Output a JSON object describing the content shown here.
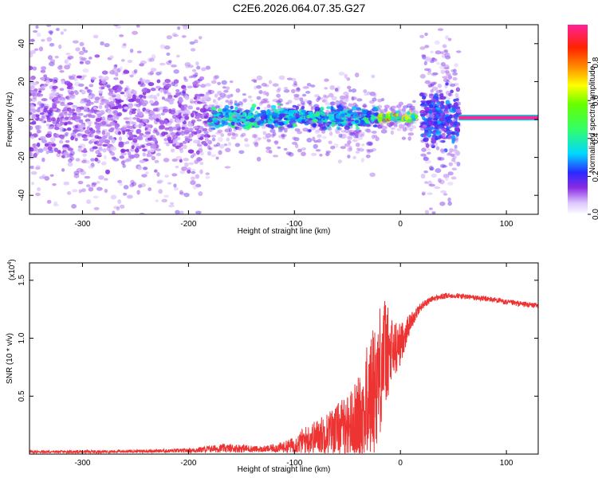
{
  "title": "C2E6.2026.064.07.35.G27",
  "charts": {
    "spectrogram": {
      "ylabel": "Frequency (Hz)",
      "xlabel": "Height of straight line (km)"
    },
    "snr": {
      "ylabel": "SNR (10 * v/v)",
      "exponent": "(x10",
      "exponent_power": "4",
      "exponent_close": ")",
      "xlabel": "Height of straight line (km)"
    },
    "colorbar": {
      "label": "Normalized spectral amplitude"
    }
  },
  "chart_data": [
    {
      "type": "heatmap",
      "title": "C2E6.2026.064.07.35.G27",
      "xlabel": "Height of straight line (km)",
      "ylabel": "Frequency (Hz)",
      "xlim": [
        -350,
        130
      ],
      "ylim": [
        -50,
        50
      ],
      "x_ticks": [
        -300,
        -200,
        -100,
        0,
        100
      ],
      "y_ticks": [
        -40,
        -20,
        0,
        20,
        40
      ],
      "colorbar": {
        "label": "Normalized spectral amplitude",
        "range": [
          0,
          1
        ],
        "ticks": [
          0.0,
          0.2,
          0.4,
          0.6,
          0.8
        ]
      },
      "features": [
        {
          "x_range": [
            -350,
            -180
          ],
          "freq_spread": 45,
          "peak_amplitude": 0.15
        },
        {
          "x_range": [
            -180,
            -20
          ],
          "freq_spread": 10,
          "peak_amplitude": 0.45
        },
        {
          "x_range": [
            -20,
            15
          ],
          "freq_spread": 4,
          "peak_amplitude": 0.8
        },
        {
          "x_range": [
            20,
            55
          ],
          "freq_spread": 25,
          "peak_amplitude": 0.3
        },
        {
          "x_range": [
            55,
            130
          ],
          "freq_spread": 1,
          "peak_amplitude": 1.0
        }
      ]
    },
    {
      "type": "line",
      "xlabel": "Height of straight line (km)",
      "ylabel": "SNR (10 * v/v)",
      "y_multiplier": 10000,
      "xlim": [
        -350,
        130
      ],
      "ylim": [
        0,
        1.65
      ],
      "x_ticks": [
        -300,
        -200,
        -100,
        0,
        100
      ],
      "y_ticks": [
        0.5,
        1.0,
        1.5
      ],
      "color": "#ee3333",
      "x": [
        -350,
        -300,
        -250,
        -200,
        -170,
        -150,
        -130,
        -110,
        -100,
        -90,
        -80,
        -70,
        -60,
        -50,
        -40,
        -30,
        -20,
        -15,
        -10,
        0,
        10,
        20,
        30,
        40,
        50,
        60,
        70,
        80,
        90,
        100,
        110,
        120,
        130
      ],
      "y": [
        0.02,
        0.02,
        0.025,
        0.03,
        0.05,
        0.05,
        0.04,
        0.06,
        0.08,
        0.12,
        0.15,
        0.18,
        0.22,
        0.25,
        0.3,
        0.45,
        0.7,
        0.9,
        0.85,
        0.95,
        1.15,
        1.28,
        1.34,
        1.36,
        1.37,
        1.36,
        1.35,
        1.34,
        1.33,
        1.31,
        1.3,
        1.29,
        1.28
      ],
      "noise_amplitude": [
        0.01,
        0.01,
        0.01,
        0.015,
        0.03,
        0.03,
        0.02,
        0.04,
        0.06,
        0.1,
        0.12,
        0.15,
        0.18,
        0.22,
        0.3,
        0.45,
        0.5,
        0.4,
        0.3,
        0.15,
        0.06,
        0.03,
        0.02,
        0.02,
        0.02,
        0.02,
        0.02,
        0.02,
        0.02,
        0.02,
        0.02,
        0.02,
        0.02
      ]
    }
  ]
}
